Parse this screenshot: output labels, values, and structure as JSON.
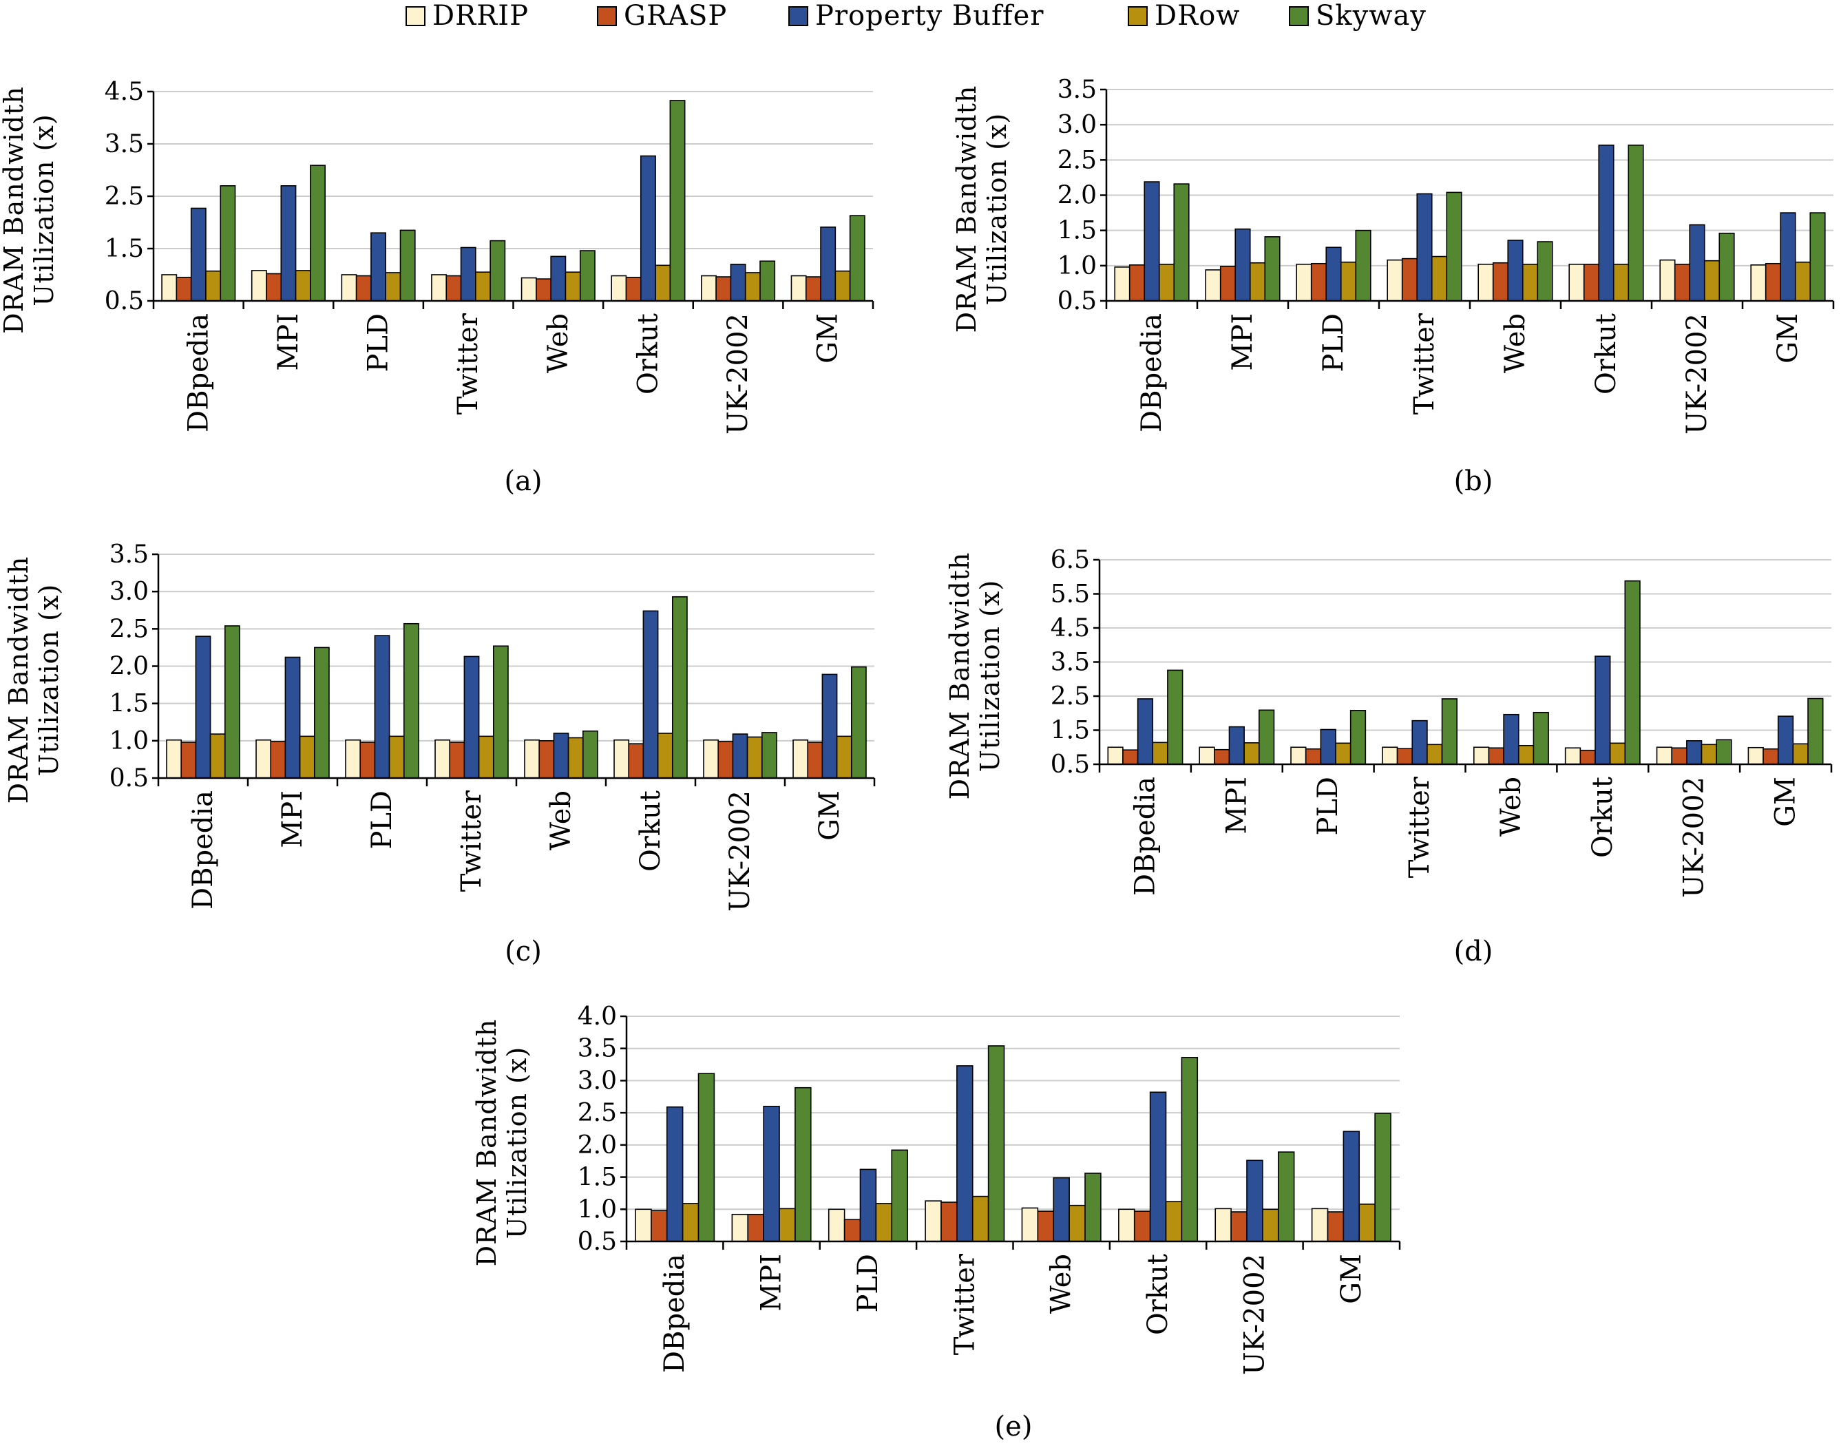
{
  "legend": [
    {
      "name": "DRRIP",
      "color": "#FDF3CF"
    },
    {
      "name": "GRASP",
      "color": "#C4501E"
    },
    {
      "name": "Property Buffer",
      "color": "#2C4F95"
    },
    {
      "name": "DRow",
      "color": "#B8900F"
    },
    {
      "name": "Skyway",
      "color": "#558733"
    }
  ],
  "chart_data": [
    {
      "type": "bar",
      "caption": "(a)",
      "ylabel_lines": [
        "DRAM Bandwidth",
        "Utilization (x)"
      ],
      "ylim": [
        0.5,
        4.5
      ],
      "yticks": [
        "0.5",
        "1.5",
        "2.5",
        "3.5",
        "4.5"
      ],
      "grid": true,
      "categories": [
        "DBpedia",
        "MPI",
        "PLD",
        "Twitter",
        "Web",
        "Orkut",
        "UK-2002",
        "GM"
      ],
      "series": [
        {
          "name": "DRRIP",
          "values": [
            1.0,
            1.08,
            1.0,
            1.0,
            0.94,
            0.98,
            0.98,
            0.98
          ]
        },
        {
          "name": "GRASP",
          "values": [
            0.95,
            1.02,
            0.98,
            0.98,
            0.92,
            0.95,
            0.96,
            0.96
          ]
        },
        {
          "name": "Property Buffer",
          "values": [
            2.27,
            2.7,
            1.8,
            1.52,
            1.35,
            3.27,
            1.2,
            1.91
          ]
        },
        {
          "name": "DRow",
          "values": [
            1.07,
            1.08,
            1.04,
            1.05,
            1.05,
            1.18,
            1.04,
            1.07
          ]
        },
        {
          "name": "Skyway",
          "values": [
            2.7,
            3.09,
            1.85,
            1.65,
            1.46,
            4.33,
            1.26,
            2.13
          ]
        }
      ]
    },
    {
      "type": "bar",
      "caption": "(b)",
      "ylabel_lines": [
        "DRAM Bandwidth",
        "Utilization (x)"
      ],
      "ylim": [
        0.5,
        3.5
      ],
      "yticks": [
        "0.5",
        "1.0",
        "1.5",
        "2.0",
        "2.5",
        "3.0",
        "3.5"
      ],
      "grid": true,
      "categories": [
        "DBpedia",
        "MPI",
        "PLD",
        "Twitter",
        "Web",
        "Orkut",
        "UK-2002",
        "GM"
      ],
      "series": [
        {
          "name": "DRRIP",
          "values": [
            0.98,
            0.94,
            1.02,
            1.08,
            1.02,
            1.02,
            1.08,
            1.01
          ]
        },
        {
          "name": "GRASP",
          "values": [
            1.01,
            0.99,
            1.03,
            1.1,
            1.04,
            1.02,
            1.02,
            1.03
          ]
        },
        {
          "name": "Property Buffer",
          "values": [
            2.19,
            1.52,
            1.26,
            2.02,
            1.36,
            2.71,
            1.58,
            1.75
          ]
        },
        {
          "name": "DRow",
          "values": [
            1.02,
            1.04,
            1.05,
            1.13,
            1.02,
            1.02,
            1.07,
            1.05
          ]
        },
        {
          "name": "Skyway",
          "values": [
            2.16,
            1.41,
            1.5,
            2.04,
            1.34,
            2.71,
            1.46,
            1.75
          ]
        }
      ]
    },
    {
      "type": "bar",
      "caption": "(c)",
      "ylabel_lines": [
        "DRAM Bandwidth",
        "Utilization (x)"
      ],
      "ylim": [
        0.5,
        3.5
      ],
      "yticks": [
        "0.5",
        "1.0",
        "1.5",
        "2.0",
        "2.5",
        "3.0",
        "3.5"
      ],
      "grid": true,
      "categories": [
        "DBpedia",
        "MPI",
        "PLD",
        "Twitter",
        "Web",
        "Orkut",
        "UK-2002",
        "GM"
      ],
      "series": [
        {
          "name": "DRRIP",
          "values": [
            1.01,
            1.01,
            1.01,
            1.01,
            1.01,
            1.01,
            1.01,
            1.01
          ]
        },
        {
          "name": "GRASP",
          "values": [
            0.98,
            0.99,
            0.98,
            0.98,
            1.0,
            0.96,
            0.99,
            0.98
          ]
        },
        {
          "name": "Property Buffer",
          "values": [
            2.4,
            2.12,
            2.41,
            2.13,
            1.1,
            2.74,
            1.09,
            1.89
          ]
        },
        {
          "name": "DRow",
          "values": [
            1.09,
            1.06,
            1.06,
            1.06,
            1.04,
            1.1,
            1.05,
            1.06
          ]
        },
        {
          "name": "Skyway",
          "values": [
            2.54,
            2.25,
            2.57,
            2.27,
            1.13,
            2.93,
            1.11,
            1.99
          ]
        }
      ]
    },
    {
      "type": "bar",
      "caption": "(d)",
      "ylabel_lines": [
        "DRAM Bandwidth",
        "Utilization (x)"
      ],
      "ylim": [
        0.5,
        6.5
      ],
      "yticks": [
        "0.5",
        "1.5",
        "2.5",
        "3.5",
        "4.5",
        "5.5",
        "6.5"
      ],
      "grid": true,
      "categories": [
        "DBpedia",
        "MPI",
        "PLD",
        "Twitter",
        "Web",
        "Orkut",
        "UK-2002",
        "GM"
      ],
      "series": [
        {
          "name": "DRRIP",
          "values": [
            1.0,
            1.0,
            1.0,
            1.0,
            1.0,
            0.98,
            1.0,
            0.99
          ]
        },
        {
          "name": "GRASP",
          "values": [
            0.92,
            0.93,
            0.95,
            0.96,
            0.98,
            0.91,
            0.98,
            0.95
          ]
        },
        {
          "name": "Property Buffer",
          "values": [
            2.42,
            1.6,
            1.52,
            1.78,
            1.96,
            3.67,
            1.19,
            1.91
          ]
        },
        {
          "name": "DRow",
          "values": [
            1.14,
            1.13,
            1.12,
            1.08,
            1.05,
            1.12,
            1.08,
            1.1
          ]
        },
        {
          "name": "Skyway",
          "values": [
            3.26,
            2.09,
            2.08,
            2.42,
            2.02,
            5.88,
            1.22,
            2.43
          ]
        }
      ]
    },
    {
      "type": "bar",
      "caption": "(e)",
      "ylabel_lines": [
        "DRAM Bandwidth",
        "Utilization (x)"
      ],
      "ylim": [
        0.5,
        4.0
      ],
      "yticks": [
        "0.5",
        "1.0",
        "1.5",
        "2.0",
        "2.5",
        "3.0",
        "3.5",
        "4.0"
      ],
      "grid": true,
      "categories": [
        "DBpedia",
        "MPI",
        "PLD",
        "Twitter",
        "Web",
        "Orkut",
        "UK-2002",
        "GM"
      ],
      "series": [
        {
          "name": "DRRIP",
          "values": [
            1.0,
            0.92,
            1.0,
            1.13,
            1.02,
            1.0,
            1.01,
            1.01
          ]
        },
        {
          "name": "GRASP",
          "values": [
            0.98,
            0.92,
            0.84,
            1.11,
            0.97,
            0.97,
            0.96,
            0.96
          ]
        },
        {
          "name": "Property Buffer",
          "values": [
            2.59,
            2.6,
            1.62,
            3.23,
            1.49,
            2.82,
            1.76,
            2.21
          ]
        },
        {
          "name": "DRow",
          "values": [
            1.09,
            1.01,
            1.09,
            1.2,
            1.06,
            1.12,
            1.0,
            1.08
          ]
        },
        {
          "name": "Skyway",
          "values": [
            3.11,
            2.89,
            1.92,
            3.54,
            1.56,
            3.36,
            1.89,
            2.49
          ]
        }
      ]
    }
  ]
}
